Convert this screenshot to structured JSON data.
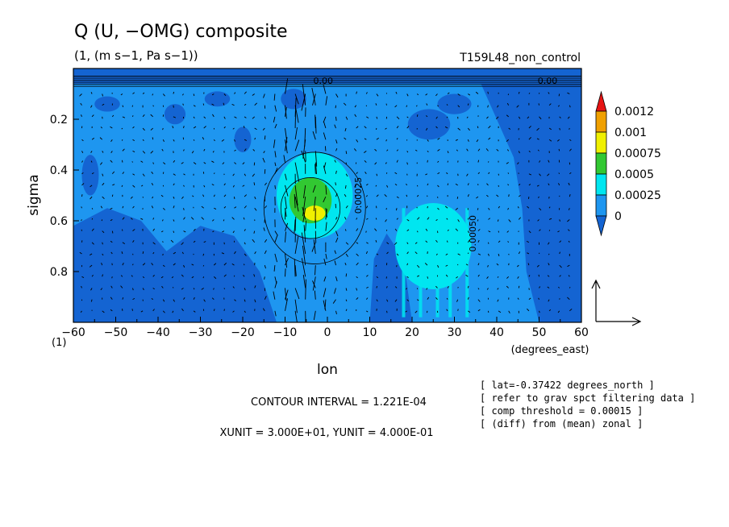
{
  "chart_data": {
    "type": "heatmap",
    "title": "Q (U, −OMG) composite",
    "subtitle": "(1, (m s−1, Pa s−1))",
    "experiment": "T159L48_non_control",
    "xlabel": "lon",
    "xunits": "(degrees_east)",
    "ylabel": "sigma",
    "origin_label": "(1)",
    "xlim": [
      -60,
      60
    ],
    "ylim": [
      1.0,
      0.0
    ],
    "xticks": [
      -60,
      -50,
      -40,
      -30,
      -20,
      -10,
      0,
      10,
      20,
      30,
      40,
      50,
      60
    ],
    "yticks": [
      0.2,
      0.4,
      0.6,
      0.8
    ],
    "colorbar": {
      "levels": [
        0,
        0.00025,
        0.0005,
        0.00075,
        0.001,
        0.0012
      ],
      "labels": [
        "0",
        "0.00025",
        "0.0005",
        "0.00075",
        "0.001",
        "0.0012"
      ],
      "colors": [
        "#1464d2",
        "#1e96f0",
        "#00e6f0",
        "#32c832",
        "#f0f000",
        "#f0a000",
        "#e61414"
      ]
    },
    "contour_labels": [
      "0.00",
      "0.00025",
      "0.00050",
      "0.00"
    ],
    "features": [
      {
        "lon": -3,
        "sigma": 0.57,
        "level": 0.00075
      },
      {
        "lon": -4,
        "sigma": 0.52,
        "level": 0.0005
      },
      {
        "lon": -3,
        "sigma": 0.5,
        "level": 0.00025
      },
      {
        "lon": 25,
        "sigma": 0.7,
        "level": 0.00025
      }
    ],
    "grid": false,
    "contour_interval": "CONTOUR INTERVAL = 1.221E-04",
    "vector_units": "XUNIT = 3.000E+01, YUNIT = 4.000E-01",
    "notes": [
      "[ lat=-0.37422 degrees_north ]",
      "[ refer to grav spct filtering data ]",
      "[ comp threshold = 0.00015 ]",
      "[ (diff) from (mean) zonal ]"
    ]
  }
}
